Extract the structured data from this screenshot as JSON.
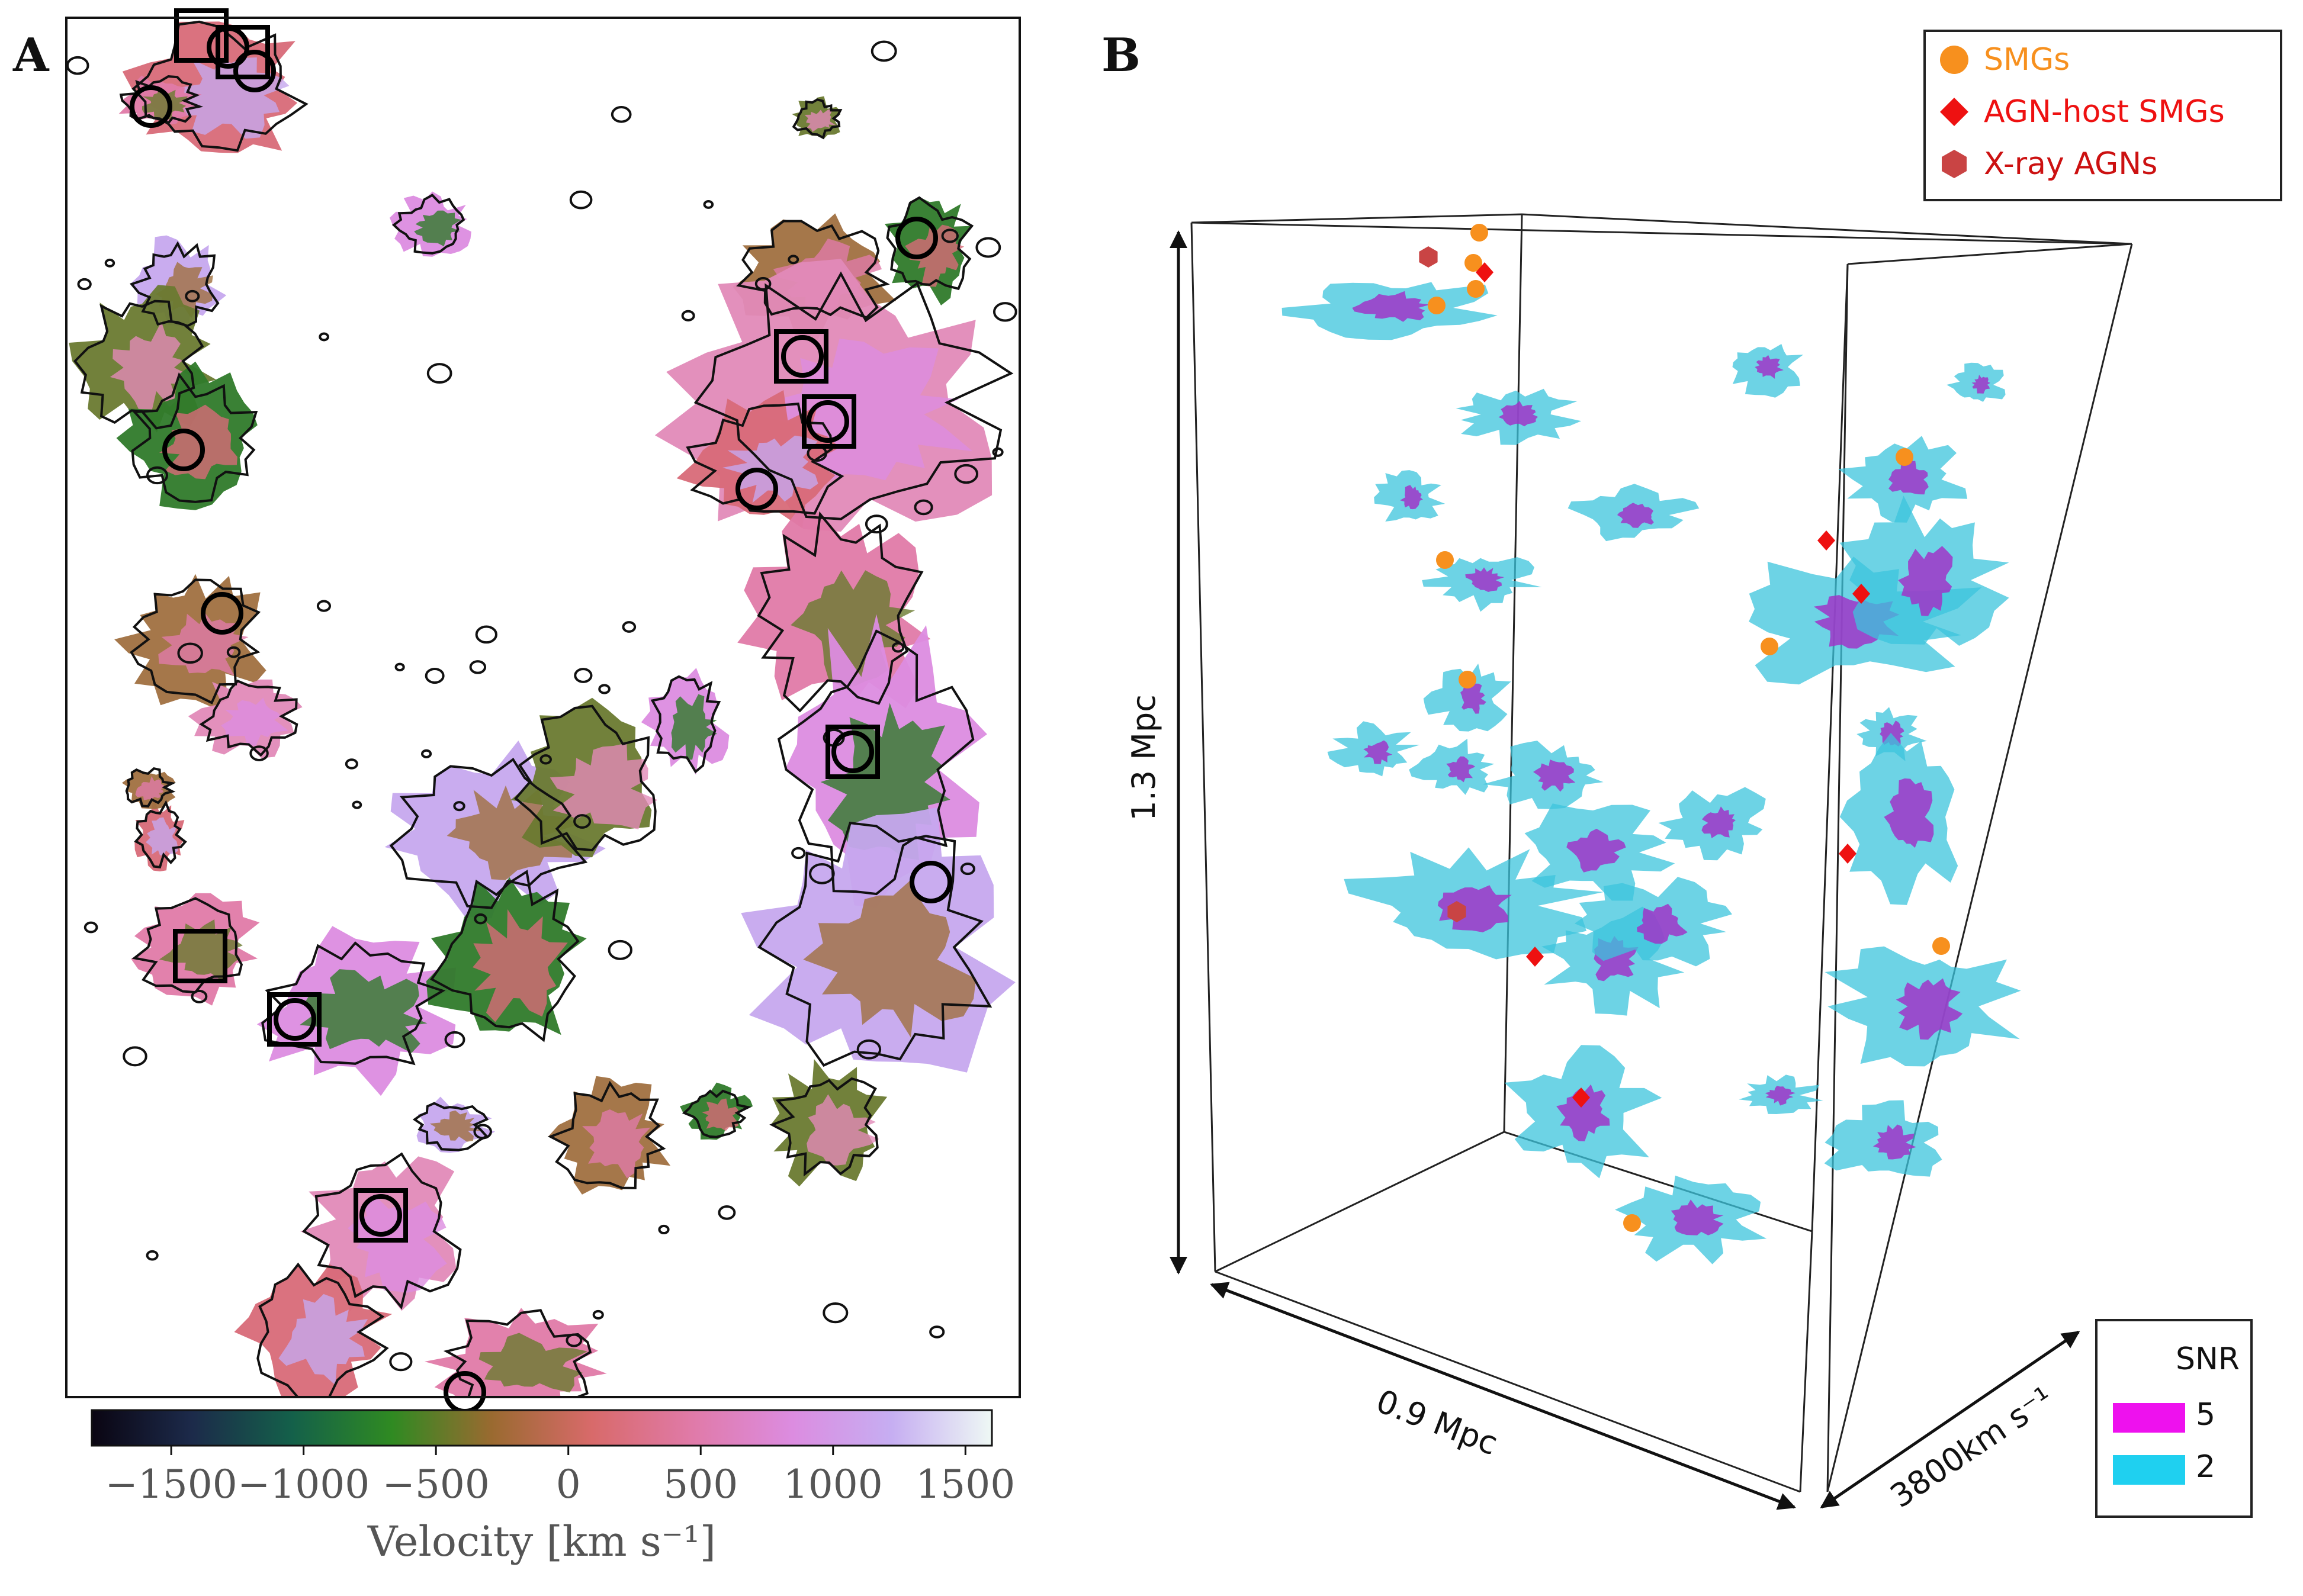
{
  "figure": {
    "panel_a_label": "A",
    "panel_b_label": "B"
  },
  "panel_a": {
    "colorbar": {
      "label": "Velocity [km s⁻¹]",
      "ticks": [
        "−1500",
        "−1000",
        "−500",
        "0",
        "500",
        "1000",
        "1500"
      ],
      "tick_values": [
        -1500,
        -1000,
        -500,
        0,
        500,
        1000,
        1500
      ],
      "vmin": -1800,
      "vmax": 1600,
      "colors": [
        "#0a0512",
        "#1c2a4a",
        "#14604a",
        "#2f8a22",
        "#9a6a30",
        "#d86a6a",
        "#e07aa8",
        "#dc8ce0",
        "#c6aef2",
        "#eef8f4"
      ]
    },
    "marker_color": "#000000"
  },
  "panel_b": {
    "legend": {
      "items": [
        {
          "label": "SMGs",
          "shape": "circle-icon",
          "color": "#f7901e"
        },
        {
          "label": "AGN-host SMGs",
          "shape": "diamond-icon",
          "color": "#ee1111"
        },
        {
          "label": "X-ray AGNs",
          "shape": "hexagon-icon",
          "color": "#c94444"
        }
      ]
    },
    "axes": {
      "height_label": "1.3 Mpc",
      "width_label": "0.9 Mpc",
      "depth_label": "3800km s⁻¹"
    },
    "snr_legend": {
      "title": "SNR",
      "levels": [
        {
          "value": "5",
          "color": "#ee11ee"
        },
        {
          "value": "2",
          "color": "#1fd0f0"
        }
      ]
    },
    "blob_color_low": "#3cc4dc",
    "blob_color_high": "#a035c8"
  }
}
